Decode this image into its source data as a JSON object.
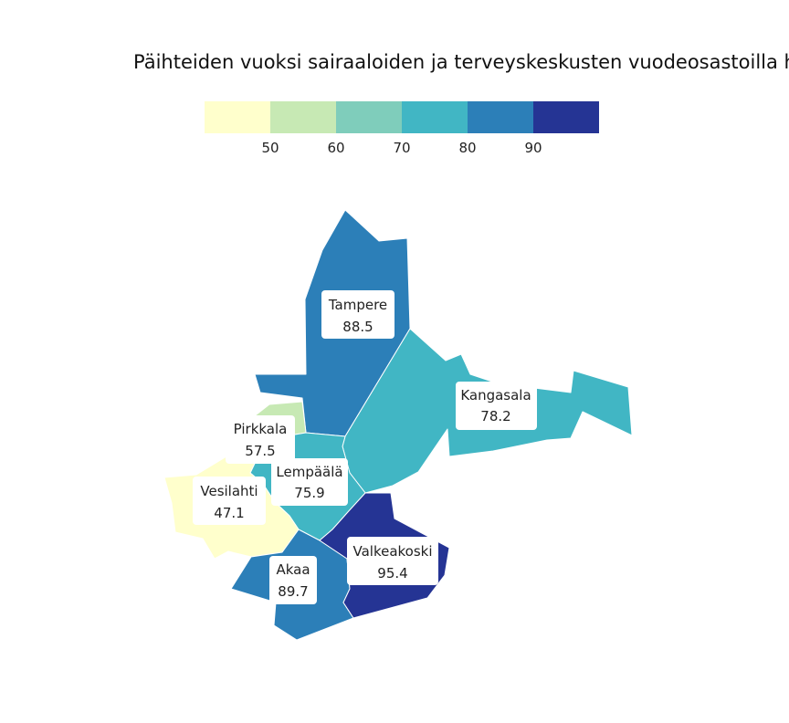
{
  "title": "Päihteiden vuoksi sairaaloiden ja terveyskeskusten vuodeosastoilla ho",
  "legend": {
    "colors": [
      "#ffffcc",
      "#c7e9b4",
      "#7fcdbb",
      "#41b6c4",
      "#2c7fb8",
      "#253494"
    ],
    "ticks": [
      "50",
      "60",
      "70",
      "80",
      "90"
    ]
  },
  "regions": [
    {
      "name": "Tampere",
      "value": "88.5",
      "color": "#2c7fb8"
    },
    {
      "name": "Kangasala",
      "value": "78.2",
      "color": "#41b6c4"
    },
    {
      "name": "Pirkkala",
      "value": "57.5",
      "color": "#c7e9b4"
    },
    {
      "name": "Lempäälä",
      "value": "75.9",
      "color": "#41b6c4"
    },
    {
      "name": "Vesilahti",
      "value": "47.1",
      "color": "#ffffcc"
    },
    {
      "name": "Akaa",
      "value": "89.7",
      "color": "#2c7fb8"
    },
    {
      "name": "Valkeakoski",
      "value": "95.4",
      "color": "#253494"
    }
  ]
}
